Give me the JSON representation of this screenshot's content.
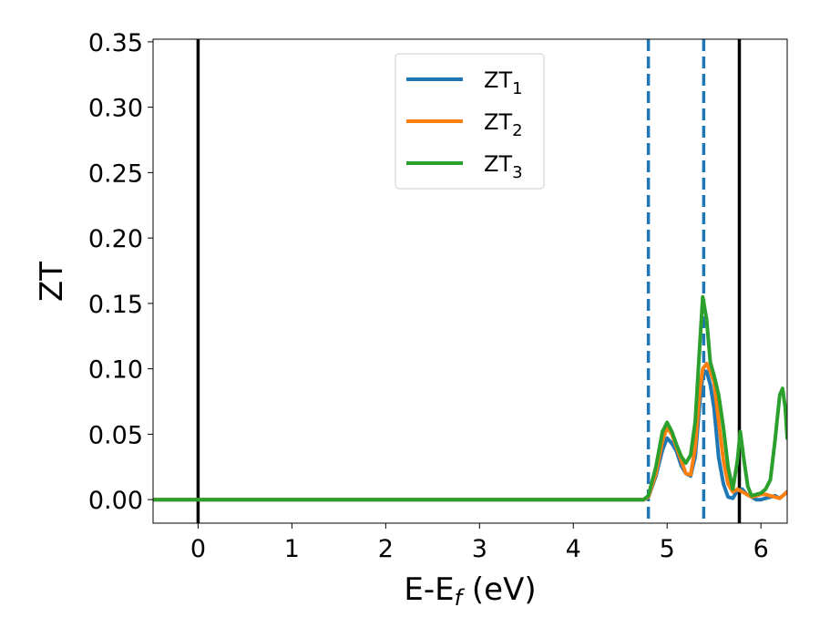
{
  "chart_data": {
    "type": "line",
    "xlabel": {
      "main": "E-E",
      "sub": "f",
      "suffix": " (eV)"
    },
    "ylabel": "ZT",
    "xlim": [
      -0.48,
      6.28
    ],
    "ylim": [
      -0.018,
      0.352
    ],
    "xticks": [
      0,
      1,
      2,
      3,
      4,
      5,
      6
    ],
    "xtick_labels": [
      "0",
      "1",
      "2",
      "3",
      "4",
      "5",
      "6"
    ],
    "yticks": [
      0.0,
      0.05,
      0.1,
      0.15,
      0.2,
      0.25,
      0.3,
      0.35
    ],
    "ytick_labels": [
      "0.00",
      "0.05",
      "0.10",
      "0.15",
      "0.20",
      "0.25",
      "0.30",
      "0.35"
    ],
    "grid": false,
    "legend_position": "top-center",
    "vlines": [
      {
        "x": 0.0,
        "style": "solid",
        "color": "#000000"
      },
      {
        "x": 5.77,
        "style": "solid",
        "color": "#000000"
      },
      {
        "x": 4.8,
        "style": "dashed",
        "color": "#1f77b4"
      },
      {
        "x": 5.39,
        "style": "dashed",
        "color": "#1f77b4"
      }
    ],
    "series": [
      {
        "name": "ZT",
        "sub": "1",
        "color": "#1f77b4",
        "x": [
          -0.48,
          4.75,
          4.8,
          4.88,
          4.95,
          5.0,
          5.05,
          5.1,
          5.15,
          5.2,
          5.25,
          5.3,
          5.35,
          5.38,
          5.42,
          5.46,
          5.5,
          5.55,
          5.6,
          5.65,
          5.7,
          5.75,
          5.8,
          5.85,
          5.9,
          5.95,
          6.0,
          6.05,
          6.1,
          6.15,
          6.2,
          6.25,
          6.28
        ],
        "y": [
          0.0,
          0.0,
          0.002,
          0.018,
          0.038,
          0.047,
          0.043,
          0.037,
          0.026,
          0.02,
          0.018,
          0.033,
          0.075,
          0.095,
          0.098,
          0.088,
          0.07,
          0.032,
          0.012,
          0.002,
          0.001,
          0.007,
          0.008,
          0.004,
          0.002,
          0.0,
          0.0,
          0.001,
          0.002,
          0.003,
          0.001,
          0.004,
          0.006
        ]
      },
      {
        "name": "ZT",
        "sub": "2",
        "color": "#ff7f0e",
        "x": [
          -0.48,
          4.75,
          4.8,
          4.88,
          4.95,
          5.0,
          5.05,
          5.1,
          5.15,
          5.2,
          5.25,
          5.3,
          5.35,
          5.38,
          5.42,
          5.46,
          5.5,
          5.55,
          5.6,
          5.65,
          5.7,
          5.75,
          5.8,
          5.85,
          5.9,
          5.95,
          6.0,
          6.05,
          6.1,
          6.15,
          6.2,
          6.25,
          6.28
        ],
        "y": [
          0.0,
          0.0,
          0.002,
          0.02,
          0.045,
          0.055,
          0.05,
          0.04,
          0.03,
          0.02,
          0.019,
          0.04,
          0.085,
          0.1,
          0.104,
          0.098,
          0.09,
          0.06,
          0.03,
          0.012,
          0.006,
          0.008,
          0.006,
          0.004,
          0.002,
          0.003,
          0.004,
          0.004,
          0.003,
          0.002,
          0.001,
          0.004,
          0.006
        ]
      },
      {
        "name": "ZT",
        "sub": "3",
        "color": "#2ca02c",
        "x": [
          -0.48,
          4.75,
          4.8,
          4.88,
          4.95,
          5.0,
          5.05,
          5.1,
          5.15,
          5.2,
          5.25,
          5.3,
          5.35,
          5.38,
          5.42,
          5.46,
          5.5,
          5.55,
          5.6,
          5.65,
          5.7,
          5.75,
          5.78,
          5.82,
          5.86,
          5.9,
          5.95,
          6.0,
          6.05,
          6.1,
          6.15,
          6.2,
          6.23,
          6.26,
          6.28
        ],
        "y": [
          0.0,
          0.0,
          0.003,
          0.025,
          0.052,
          0.059,
          0.052,
          0.042,
          0.033,
          0.028,
          0.034,
          0.06,
          0.12,
          0.155,
          0.138,
          0.105,
          0.095,
          0.08,
          0.055,
          0.025,
          0.008,
          0.03,
          0.052,
          0.03,
          0.01,
          0.003,
          0.004,
          0.005,
          0.008,
          0.015,
          0.045,
          0.08,
          0.085,
          0.07,
          0.047
        ]
      }
    ]
  }
}
